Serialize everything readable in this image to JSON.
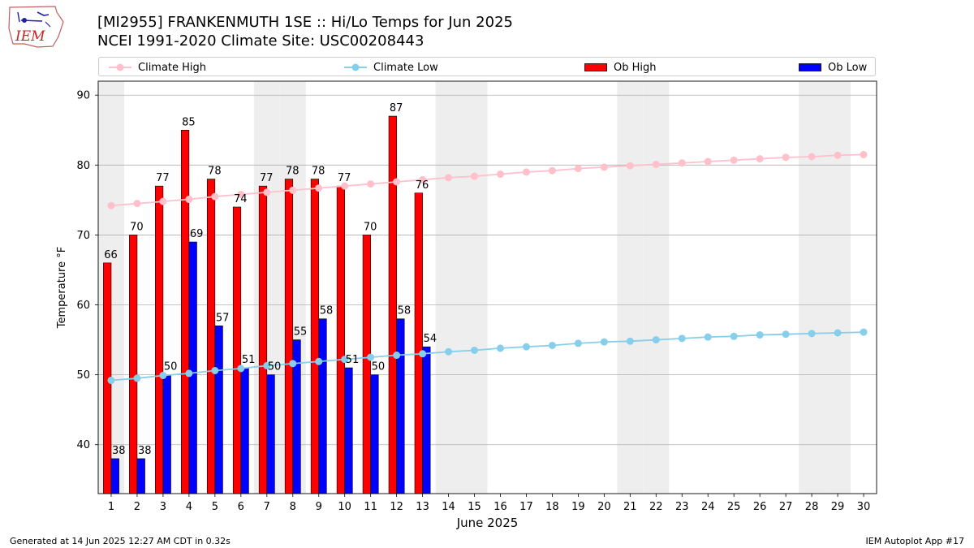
{
  "header": {
    "logo_text": "IEM",
    "title_line1": "[MI2955] FRANKENMUTH 1SE :: Hi/Lo Temps for Jun 2025",
    "title_line2": "NCEI 1991-2020 Climate Site: USC00208443"
  },
  "legend": {
    "placement": "top",
    "items": [
      "Climate High",
      "Climate Low",
      "Ob High",
      "Ob Low"
    ]
  },
  "footer": {
    "left": "Generated at 14 Jun 2025 12:27 AM CDT in 0.32s",
    "right": "IEM Autoplot App #17"
  },
  "colors": {
    "ob_high": "#ff0000",
    "ob_low": "#0000ff",
    "climate_high": "#ffc0cb",
    "climate_low": "#87ceeb",
    "weekend_shade": "#eeeeee",
    "grid": "#b0b0b0"
  },
  "chart_data": {
    "type": "bar",
    "xlabel": "June 2025",
    "ylabel": "Temperature °F",
    "xlim": [
      0.5,
      30.5
    ],
    "ylim": [
      33,
      92
    ],
    "yticks": [
      40,
      50,
      60,
      70,
      80,
      90
    ],
    "grid": "horizontal",
    "days": [
      1,
      2,
      3,
      4,
      5,
      6,
      7,
      8,
      9,
      10,
      11,
      12,
      13,
      14,
      15,
      16,
      17,
      18,
      19,
      20,
      21,
      22,
      23,
      24,
      25,
      26,
      27,
      28,
      29,
      30
    ],
    "weekend_days": [
      1,
      7,
      8,
      14,
      15,
      21,
      22,
      28,
      29
    ],
    "series": [
      {
        "name": "Ob High",
        "kind": "bar",
        "values": [
          66,
          70,
          77,
          85,
          78,
          74,
          77,
          78,
          78,
          77,
          70,
          87,
          76
        ]
      },
      {
        "name": "Ob Low",
        "kind": "bar",
        "values": [
          38,
          38,
          50,
          69,
          57,
          51,
          50,
          55,
          58,
          51,
          50,
          58,
          54
        ]
      },
      {
        "name": "Climate High",
        "kind": "line",
        "values": [
          74.2,
          74.5,
          74.8,
          75.1,
          75.5,
          75.8,
          76.1,
          76.4,
          76.7,
          77.0,
          77.3,
          77.6,
          77.9,
          78.2,
          78.4,
          78.7,
          79.0,
          79.2,
          79.5,
          79.7,
          79.9,
          80.1,
          80.3,
          80.5,
          80.7,
          80.9,
          81.1,
          81.2,
          81.4,
          81.5
        ]
      },
      {
        "name": "Climate Low",
        "kind": "line",
        "values": [
          49.2,
          49.5,
          49.9,
          50.2,
          50.6,
          50.9,
          51.3,
          51.6,
          51.9,
          52.2,
          52.5,
          52.8,
          53.0,
          53.3,
          53.5,
          53.8,
          54.0,
          54.2,
          54.5,
          54.7,
          54.8,
          55.0,
          55.2,
          55.4,
          55.5,
          55.7,
          55.8,
          55.9,
          56.0,
          56.1
        ]
      }
    ]
  }
}
